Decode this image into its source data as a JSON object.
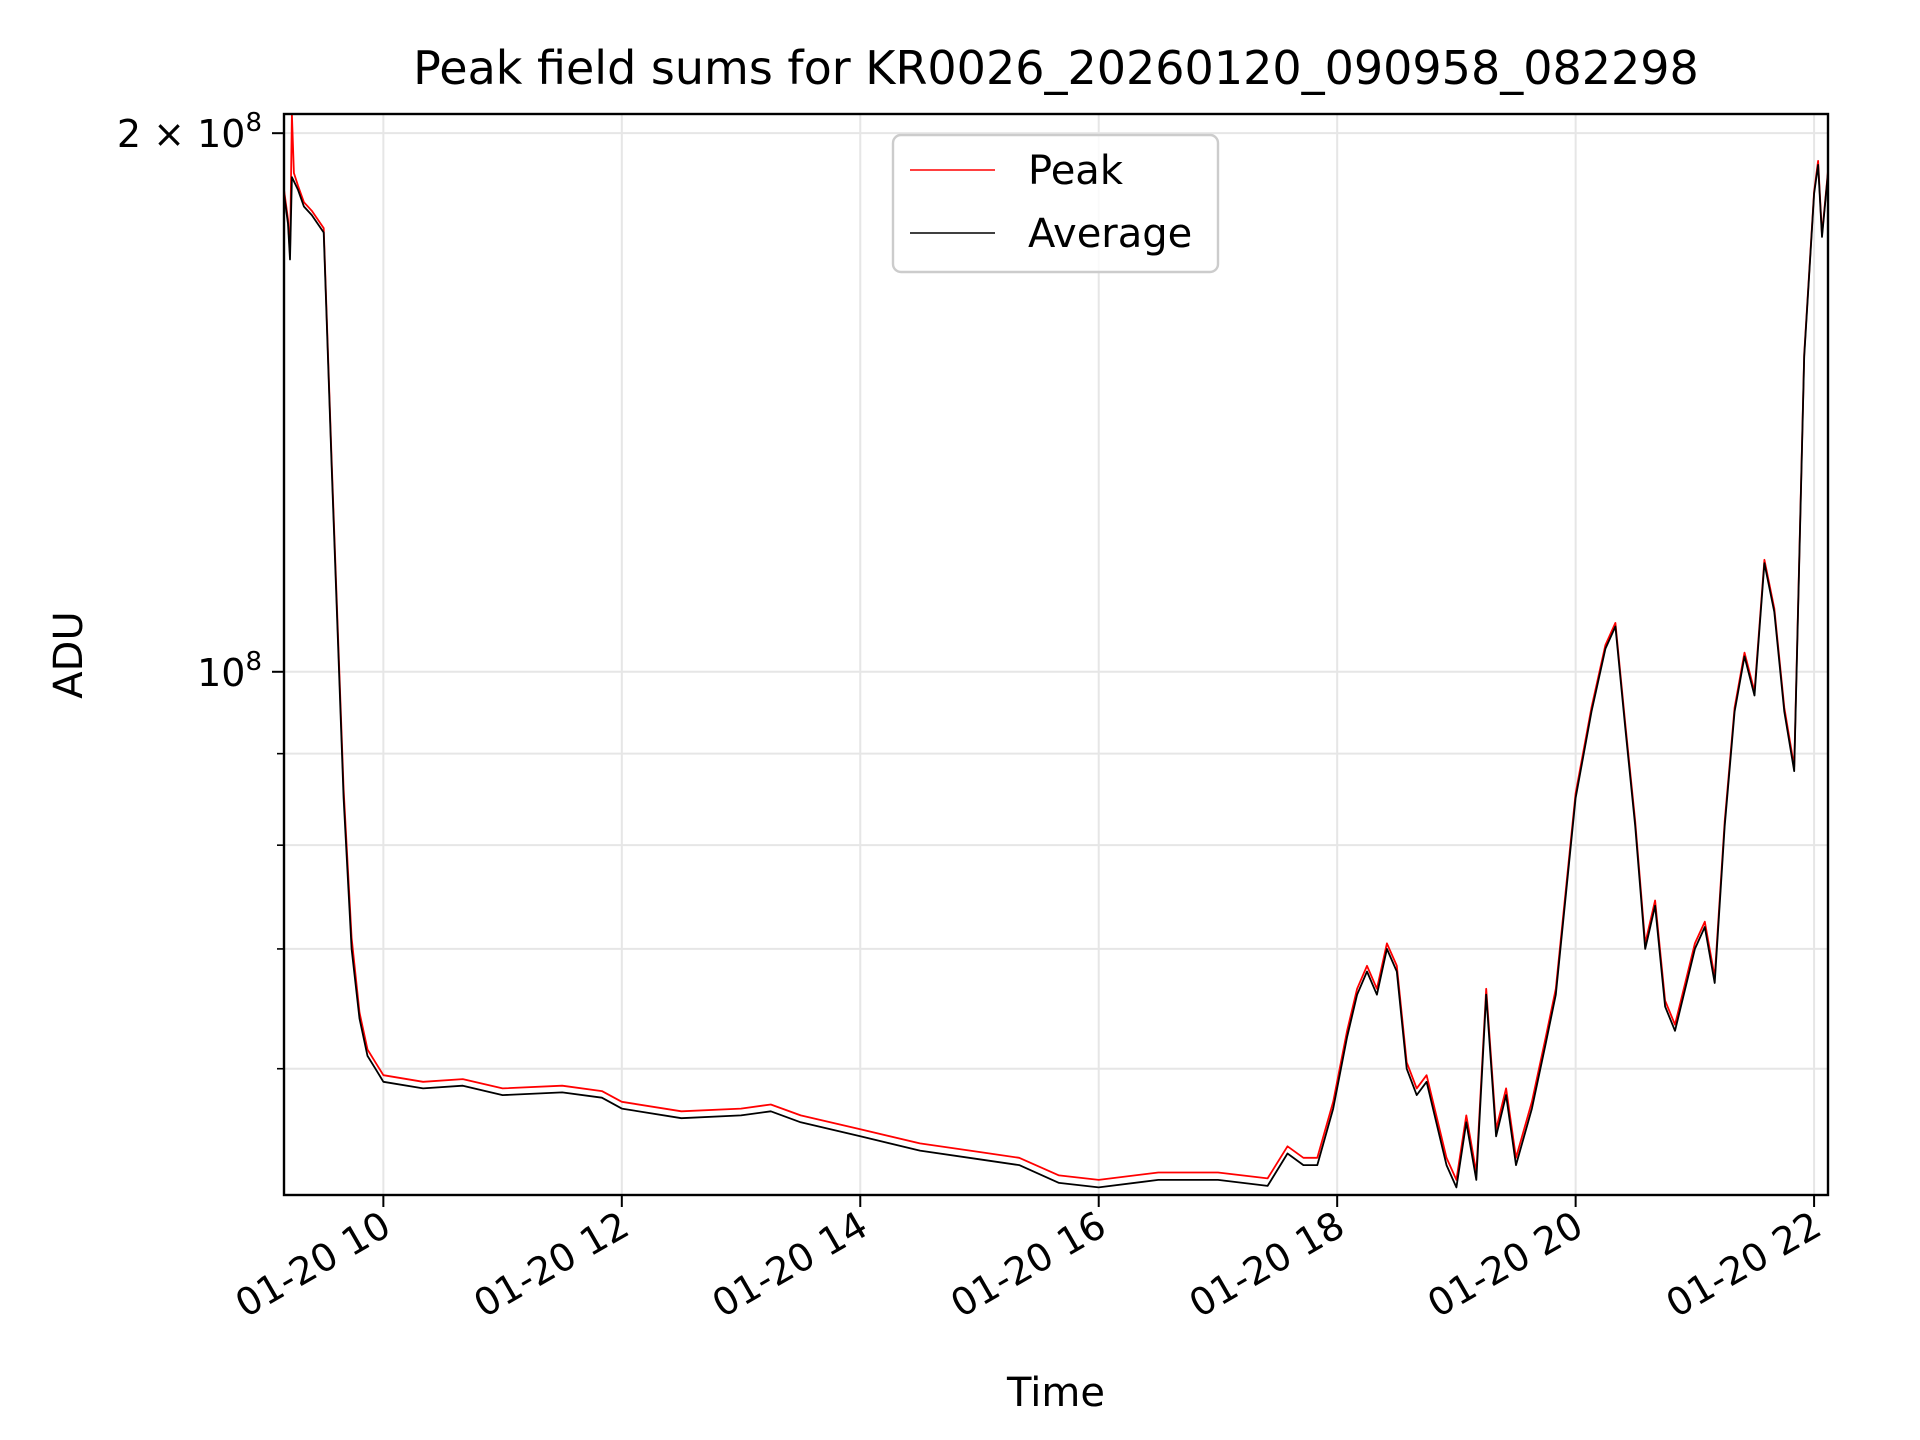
{
  "chart_data": {
    "type": "line",
    "title": "Peak field sums for KR0026_20260120_090958_082298",
    "xlabel": "Time",
    "ylabel": "ADU",
    "yscale": "log",
    "ylim": [
      51000000,
      205000000
    ],
    "xlim": [
      "2026-01-20 09:10",
      "2026-01-20 22:07"
    ],
    "grid": true,
    "legend": {
      "placement": "top-center",
      "entries": [
        "Peak",
        "Average"
      ]
    },
    "colors": {
      "Peak": "#ff0000",
      "Average": "#000000",
      "grid": "#e6e6e6"
    },
    "x_ticks": [
      {
        "value": "2026-01-20 10:00",
        "label": "01-20 10"
      },
      {
        "value": "2026-01-20 12:00",
        "label": "01-20 12"
      },
      {
        "value": "2026-01-20 14:00",
        "label": "01-20 14"
      },
      {
        "value": "2026-01-20 16:00",
        "label": "01-20 16"
      },
      {
        "value": "2026-01-20 18:00",
        "label": "01-20 18"
      },
      {
        "value": "2026-01-20 20:00",
        "label": "01-20 20"
      },
      {
        "value": "2026-01-20 22:00",
        "label": "01-20 22"
      }
    ],
    "y_major_ticks": [
      {
        "value": 100000000,
        "base": "10",
        "exp": "8"
      },
      {
        "value": 200000000,
        "mant": "2 × ",
        "base": "10",
        "exp": "8"
      }
    ],
    "y_minor_ticks": [
      60000000,
      70000000,
      80000000,
      90000000
    ],
    "series": [
      {
        "name": "Average",
        "x": [
          "2026-01-20 09:10",
          "2026-01-20 09:12",
          "2026-01-20 09:13",
          "2026-01-20 09:14",
          "2026-01-20 09:17",
          "2026-01-20 09:20",
          "2026-01-20 09:24",
          "2026-01-20 09:30",
          "2026-01-20 09:34",
          "2026-01-20 09:40",
          "2026-01-20 09:44",
          "2026-01-20 09:48",
          "2026-01-20 09:52",
          "2026-01-20 09:56",
          "2026-01-20 10:00",
          "2026-01-20 10:20",
          "2026-01-20 10:40",
          "2026-01-20 11:00",
          "2026-01-20 11:30",
          "2026-01-20 11:50",
          "2026-01-20 12:00",
          "2026-01-20 12:30",
          "2026-01-20 13:00",
          "2026-01-20 13:15",
          "2026-01-20 13:30",
          "2026-01-20 14:00",
          "2026-01-20 14:30",
          "2026-01-20 15:00",
          "2026-01-20 15:20",
          "2026-01-20 15:40",
          "2026-01-20 16:00",
          "2026-01-20 16:30",
          "2026-01-20 17:00",
          "2026-01-20 17:25",
          "2026-01-20 17:35",
          "2026-01-20 17:43",
          "2026-01-20 17:50",
          "2026-01-20 17:58",
          "2026-01-20 18:05",
          "2026-01-20 18:10",
          "2026-01-20 18:15",
          "2026-01-20 18:20",
          "2026-01-20 18:25",
          "2026-01-20 18:30",
          "2026-01-20 18:35",
          "2026-01-20 18:40",
          "2026-01-20 18:45",
          "2026-01-20 18:55",
          "2026-01-20 19:00",
          "2026-01-20 19:05",
          "2026-01-20 19:10",
          "2026-01-20 19:15",
          "2026-01-20 19:20",
          "2026-01-20 19:25",
          "2026-01-20 19:30",
          "2026-01-20 19:38",
          "2026-01-20 19:45",
          "2026-01-20 19:50",
          "2026-01-20 20:00",
          "2026-01-20 20:08",
          "2026-01-20 20:15",
          "2026-01-20 20:20",
          "2026-01-20 20:25",
          "2026-01-20 20:30",
          "2026-01-20 20:35",
          "2026-01-20 20:40",
          "2026-01-20 20:45",
          "2026-01-20 20:50",
          "2026-01-20 21:00",
          "2026-01-20 21:05",
          "2026-01-20 21:10",
          "2026-01-20 21:15",
          "2026-01-20 21:20",
          "2026-01-20 21:25",
          "2026-01-20 21:30",
          "2026-01-20 21:35",
          "2026-01-20 21:40",
          "2026-01-20 21:45",
          "2026-01-20 21:50",
          "2026-01-20 21:55",
          "2026-01-20 22:00",
          "2026-01-20 22:02",
          "2026-01-20 22:04",
          "2026-01-20 22:07"
        ],
        "y": [
          185000000,
          178000000,
          170000000,
          189000000,
          186000000,
          182000000,
          180000000,
          176000000,
          130000000,
          85000000,
          70000000,
          64000000,
          61000000,
          60000000,
          59000000,
          58500000,
          58700000,
          58000000,
          58200000,
          57800000,
          57000000,
          56300000,
          56500000,
          56800000,
          56000000,
          55000000,
          54000000,
          53400000,
          53000000,
          51800000,
          51500000,
          52000000,
          52000000,
          51600000,
          53800000,
          53000000,
          53000000,
          57000000,
          62500000,
          66000000,
          68000000,
          66000000,
          70000000,
          68000000,
          60000000,
          58000000,
          59000000,
          53000000,
          51500000,
          56000000,
          52000000,
          66000000,
          55000000,
          58000000,
          53000000,
          57000000,
          62000000,
          66000000,
          85000000,
          95000000,
          103000000,
          106000000,
          93000000,
          82000000,
          70000000,
          74000000,
          65000000,
          63000000,
          70000000,
          72000000,
          67000000,
          82000000,
          95000000,
          102000000,
          97000000,
          115000000,
          108000000,
          95000000,
          88000000,
          150000000,
          185000000,
          192000000,
          175000000,
          190000000
        ]
      },
      {
        "name": "Peak",
        "x": [
          "2026-01-20 09:10",
          "2026-01-20 09:12",
          "2026-01-20 09:13",
          "2026-01-20 09:14",
          "2026-01-20 09:14",
          "2026-01-20 09:15",
          "2026-01-20 09:17",
          "2026-01-20 09:20",
          "2026-01-20 09:24",
          "2026-01-20 09:30",
          "2026-01-20 09:34",
          "2026-01-20 09:40",
          "2026-01-20 09:44",
          "2026-01-20 09:48",
          "2026-01-20 09:52",
          "2026-01-20 09:56",
          "2026-01-20 10:00",
          "2026-01-20 10:20",
          "2026-01-20 10:40",
          "2026-01-20 11:00",
          "2026-01-20 11:30",
          "2026-01-20 11:50",
          "2026-01-20 12:00",
          "2026-01-20 12:30",
          "2026-01-20 13:00",
          "2026-01-20 13:15",
          "2026-01-20 13:30",
          "2026-01-20 14:00",
          "2026-01-20 14:30",
          "2026-01-20 15:00",
          "2026-01-20 15:20",
          "2026-01-20 15:40",
          "2026-01-20 16:00",
          "2026-01-20 16:30",
          "2026-01-20 17:00",
          "2026-01-20 17:25",
          "2026-01-20 17:35",
          "2026-01-20 17:43",
          "2026-01-20 17:50",
          "2026-01-20 17:58",
          "2026-01-20 18:05",
          "2026-01-20 18:10",
          "2026-01-20 18:15",
          "2026-01-20 18:20",
          "2026-01-20 18:25",
          "2026-01-20 18:30",
          "2026-01-20 18:35",
          "2026-01-20 18:40",
          "2026-01-20 18:45",
          "2026-01-20 18:55",
          "2026-01-20 19:00",
          "2026-01-20 19:05",
          "2026-01-20 19:10",
          "2026-01-20 19:15",
          "2026-01-20 19:20",
          "2026-01-20 19:25",
          "2026-01-20 19:30",
          "2026-01-20 19:38",
          "2026-01-20 19:45",
          "2026-01-20 19:50",
          "2026-01-20 20:00",
          "2026-01-20 20:08",
          "2026-01-20 20:15",
          "2026-01-20 20:20",
          "2026-01-20 20:25",
          "2026-01-20 20:30",
          "2026-01-20 20:35",
          "2026-01-20 20:40",
          "2026-01-20 20:45",
          "2026-01-20 20:50",
          "2026-01-20 21:00",
          "2026-01-20 21:05",
          "2026-01-20 21:10",
          "2026-01-20 21:15",
          "2026-01-20 21:20",
          "2026-01-20 21:25",
          "2026-01-20 21:30",
          "2026-01-20 21:35",
          "2026-01-20 21:40",
          "2026-01-20 21:45",
          "2026-01-20 21:50",
          "2026-01-20 21:55",
          "2026-01-20 22:00",
          "2026-01-20 22:02",
          "2026-01-20 22:04",
          "2026-01-20 22:07"
        ],
        "y": [
          186000000,
          179000000,
          171000000,
          205000000,
          205000000,
          190000000,
          187000000,
          183000000,
          181000000,
          177000000,
          131000000,
          86000000,
          71000000,
          64500000,
          61500000,
          60500000,
          59500000,
          59000000,
          59200000,
          58500000,
          58700000,
          58300000,
          57500000,
          56800000,
          57000000,
          57300000,
          56500000,
          55500000,
          54500000,
          53900000,
          53500000,
          52300000,
          52000000,
          52500000,
          52500000,
          52100000,
          54300000,
          53500000,
          53500000,
          57500000,
          63000000,
          66500000,
          68500000,
          66500000,
          70500000,
          68500000,
          60500000,
          58500000,
          59500000,
          53500000,
          52000000,
          56500000,
          52500000,
          66500000,
          55500000,
          58500000,
          53500000,
          57500000,
          62500000,
          66500000,
          85500000,
          95500000,
          103500000,
          106500000,
          93500000,
          82500000,
          70500000,
          74500000,
          65500000,
          63500000,
          70500000,
          72500000,
          67500000,
          82500000,
          95500000,
          102500000,
          97500000,
          115500000,
          108500000,
          95500000,
          88500000,
          150500000,
          185500000,
          193000000,
          175500000,
          190500000
        ]
      }
    ]
  }
}
